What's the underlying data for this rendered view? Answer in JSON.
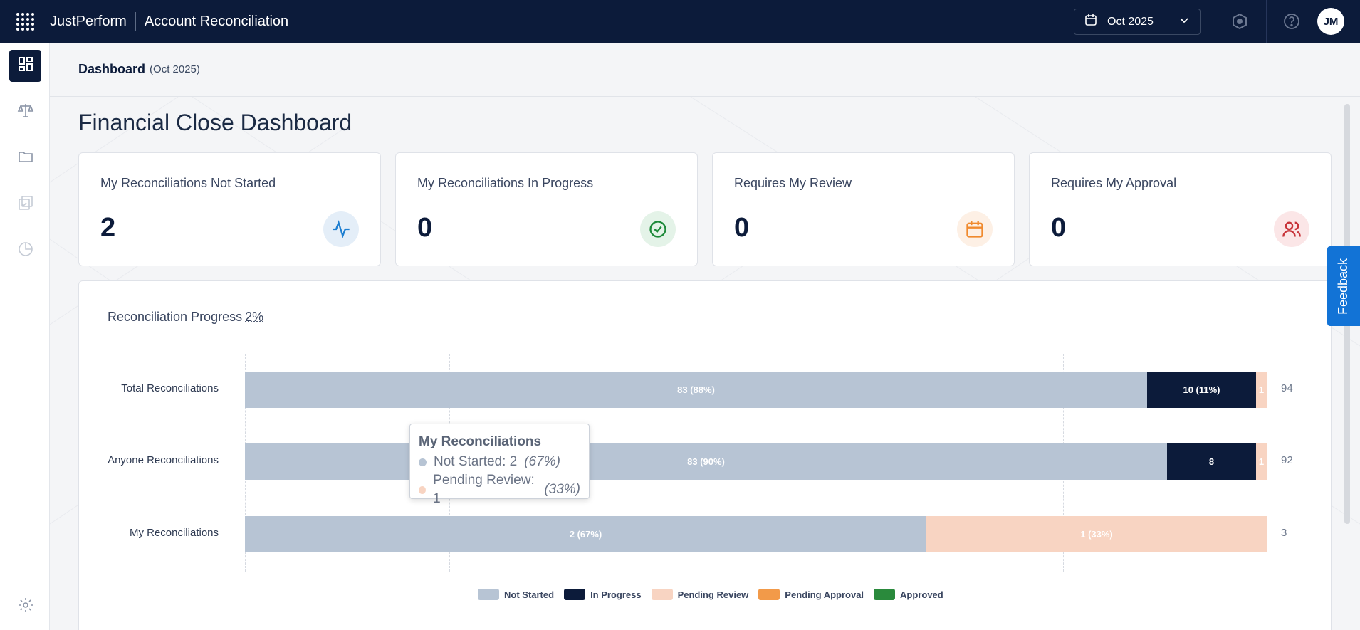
{
  "topbar": {
    "brand": "JustPerform",
    "app_title": "Account Reconciliation",
    "period_label": "Oct 2025",
    "avatar_initials": "JM"
  },
  "breadcrumb": {
    "main": "Dashboard",
    "sub": "(Oct 2025)"
  },
  "page_title": "Financial Close Dashboard",
  "cards": [
    {
      "label": "My Reconciliations Not Started",
      "value": "2",
      "icon": "activity-icon",
      "icon_color": "#1e7fd1",
      "icon_bg": "#e4eef8"
    },
    {
      "label": "My Reconciliations In Progress",
      "value": "0",
      "icon": "check-circle-icon",
      "icon_color": "#1e8a3a",
      "icon_bg": "#e4f3e8"
    },
    {
      "label": "Requires My Review",
      "value": "0",
      "icon": "calendar-icon",
      "icon_color": "#f08a2e",
      "icon_bg": "#fdf0e5"
    },
    {
      "label": "Requires My Approval",
      "value": "0",
      "icon": "users-icon",
      "icon_color": "#c8343a",
      "icon_bg": "#fbe6e7"
    }
  ],
  "progress": {
    "title": "Reconciliation Progress",
    "percent": "2%",
    "rows": [
      {
        "label": "Total Reconciliations",
        "total": "94",
        "segments": [
          {
            "status": "Not Started",
            "value": 83,
            "text": "83 (88%)"
          },
          {
            "status": "In Progress",
            "value": 10,
            "text": "10 (11%)"
          },
          {
            "status": "Pending Review",
            "value": 1,
            "text": "1"
          }
        ]
      },
      {
        "label": "Anyone Reconciliations",
        "total": "92",
        "segments": [
          {
            "status": "Not Started",
            "value": 83,
            "text": "83 (90%)"
          },
          {
            "status": "In Progress",
            "value": 8,
            "text": "8"
          },
          {
            "status": "Pending Review",
            "value": 1,
            "text": "1"
          }
        ]
      },
      {
        "label": "My Reconciliations",
        "total": "3",
        "segments": [
          {
            "status": "Not Started",
            "value": 2,
            "text": "2 (67%)"
          },
          {
            "status": "Pending Review",
            "value": 1,
            "text": "1 (33%)"
          }
        ]
      }
    ],
    "legend": [
      {
        "label": "Not Started",
        "color": "#b7c4d4"
      },
      {
        "label": "In Progress",
        "color": "#0c1b3a"
      },
      {
        "label": "Pending Review",
        "color": "#f8d4c2"
      },
      {
        "label": "Pending Approval",
        "color": "#f29a49"
      },
      {
        "label": "Approved",
        "color": "#2a8a3c"
      }
    ]
  },
  "tooltip": {
    "title": "My Reconciliations",
    "rows": [
      {
        "label": "Not Started: 2",
        "pct": "(67%)",
        "color": "#b7c4d4"
      },
      {
        "label": "Pending Review: 1",
        "pct": "(33%)",
        "color": "#f8d4c2"
      }
    ]
  },
  "feedback_label": "Feedback"
}
